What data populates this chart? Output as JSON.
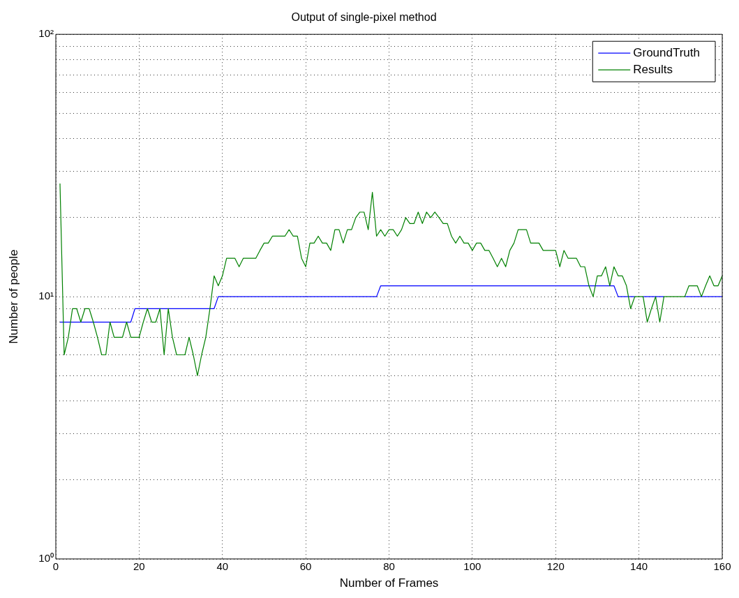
{
  "chart_data": {
    "type": "line",
    "title": "Output of single-pixel method",
    "xlabel": "Number of Frames",
    "ylabel": "Number of people",
    "x": [
      1,
      2,
      3,
      4,
      5,
      6,
      7,
      8,
      9,
      10,
      11,
      12,
      13,
      14,
      15,
      16,
      17,
      18,
      19,
      20,
      21,
      22,
      23,
      24,
      25,
      26,
      27,
      28,
      29,
      30,
      31,
      32,
      33,
      34,
      35,
      36,
      37,
      38,
      39,
      40,
      41,
      42,
      43,
      44,
      45,
      46,
      47,
      48,
      49,
      50,
      51,
      52,
      53,
      54,
      55,
      56,
      57,
      58,
      59,
      60,
      61,
      62,
      63,
      64,
      65,
      66,
      67,
      68,
      69,
      70,
      71,
      72,
      73,
      74,
      75,
      76,
      77,
      78,
      79,
      80,
      81,
      82,
      83,
      84,
      85,
      86,
      87,
      88,
      89,
      90,
      91,
      92,
      93,
      94,
      95,
      96,
      97,
      98,
      99,
      100,
      101,
      102,
      103,
      104,
      105,
      106,
      107,
      108,
      109,
      110,
      111,
      112,
      113,
      114,
      115,
      116,
      117,
      118,
      119,
      120,
      121,
      122,
      123,
      124,
      125,
      126,
      127,
      128,
      129,
      130,
      131,
      132,
      133,
      134,
      135,
      136,
      137,
      138,
      139,
      140,
      141,
      142,
      143,
      144,
      145,
      146,
      147,
      148,
      149,
      150,
      151,
      152,
      153,
      154,
      155,
      156,
      157,
      158,
      159,
      160
    ],
    "series": [
      {
        "name": "GroundTruth",
        "color": "#0000ff",
        "values": [
          8,
          8,
          8,
          8,
          8,
          8,
          8,
          8,
          8,
          8,
          8,
          8,
          8,
          8,
          8,
          8,
          8,
          8,
          9,
          9,
          9,
          9,
          9,
          9,
          9,
          9,
          9,
          9,
          9,
          9,
          9,
          9,
          9,
          9,
          9,
          9,
          9,
          9,
          10,
          10,
          10,
          10,
          10,
          10,
          10,
          10,
          10,
          10,
          10,
          10,
          10,
          10,
          10,
          10,
          10,
          10,
          10,
          10,
          10,
          10,
          10,
          10,
          10,
          10,
          10,
          10,
          10,
          10,
          10,
          10,
          10,
          10,
          10,
          10,
          10,
          10,
          10,
          11,
          11,
          11,
          11,
          11,
          11,
          11,
          11,
          11,
          11,
          11,
          11,
          11,
          11,
          11,
          11,
          11,
          11,
          11,
          11,
          11,
          11,
          11,
          11,
          11,
          11,
          11,
          11,
          11,
          11,
          11,
          11,
          11,
          11,
          11,
          11,
          11,
          11,
          11,
          11,
          11,
          11,
          11,
          11,
          11,
          11,
          11,
          11,
          11,
          11,
          11,
          11,
          11,
          11,
          11,
          11,
          11,
          10,
          10,
          10,
          10,
          10,
          null,
          10,
          10,
          10,
          10,
          10,
          10,
          null,
          null,
          null,
          null,
          10,
          10,
          10,
          10,
          10,
          10,
          10,
          10,
          10,
          10
        ]
      },
      {
        "name": "Results",
        "color": "#008000",
        "values": [
          27,
          6,
          7,
          9,
          9,
          8,
          9,
          9,
          8,
          7,
          6,
          6,
          8,
          7,
          7,
          7,
          8,
          7,
          7,
          7,
          8,
          9,
          8,
          8,
          9,
          6,
          9,
          7,
          6,
          6,
          6,
          7,
          6,
          5,
          6,
          7,
          9,
          12,
          11,
          12,
          14,
          14,
          14,
          13,
          14,
          14,
          14,
          14,
          15,
          16,
          16,
          17,
          17,
          17,
          17,
          18,
          17,
          17,
          14,
          13,
          16,
          16,
          17,
          16,
          16,
          15,
          18,
          18,
          16,
          18,
          18,
          20,
          21,
          21,
          18,
          25,
          17,
          18,
          17,
          18,
          18,
          17,
          18,
          20,
          19,
          19,
          21,
          19,
          21,
          20,
          21,
          20,
          19,
          19,
          17,
          16,
          17,
          16,
          16,
          15,
          16,
          16,
          15,
          15,
          14,
          13,
          14,
          13,
          15,
          16,
          18,
          18,
          18,
          16,
          16,
          16,
          15,
          15,
          15,
          15,
          13,
          15,
          14,
          14,
          14,
          13,
          13,
          11,
          10,
          12,
          12,
          13,
          11,
          13,
          12,
          12,
          11,
          9,
          10,
          10,
          10,
          8,
          9,
          10,
          8,
          10,
          10,
          10,
          10,
          10,
          10,
          11,
          11,
          11,
          10,
          11,
          12,
          11,
          11,
          12
        ]
      }
    ],
    "log": "y",
    "xlim": [
      0,
      160
    ],
    "xticks": [
      0,
      20,
      40,
      60,
      80,
      100,
      120,
      140,
      160
    ],
    "ylim": [
      1,
      100
    ],
    "yticks": [
      {
        "value": 1,
        "label": "10⁰"
      },
      {
        "value": 2,
        "label": null
      },
      {
        "value": 3,
        "label": null
      },
      {
        "value": 4,
        "label": null
      },
      {
        "value": 5,
        "label": null
      },
      {
        "value": 6,
        "label": null
      },
      {
        "value": 7,
        "label": null
      },
      {
        "value": 8,
        "label": null
      },
      {
        "value": 9,
        "label": null
      },
      {
        "value": 10,
        "label": "10¹"
      },
      {
        "value": 20,
        "label": null
      },
      {
        "value": 30,
        "label": null
      },
      {
        "value": 40,
        "label": null
      },
      {
        "value": 50,
        "label": null
      },
      {
        "value": 60,
        "label": null
      },
      {
        "value": 70,
        "label": null
      },
      {
        "value": 80,
        "label": null
      },
      {
        "value": 90,
        "label": null
      },
      {
        "value": 100,
        "label": "10²"
      }
    ],
    "grid": true,
    "legend": "top right",
    "marker": "none",
    "line_style": "solid"
  }
}
